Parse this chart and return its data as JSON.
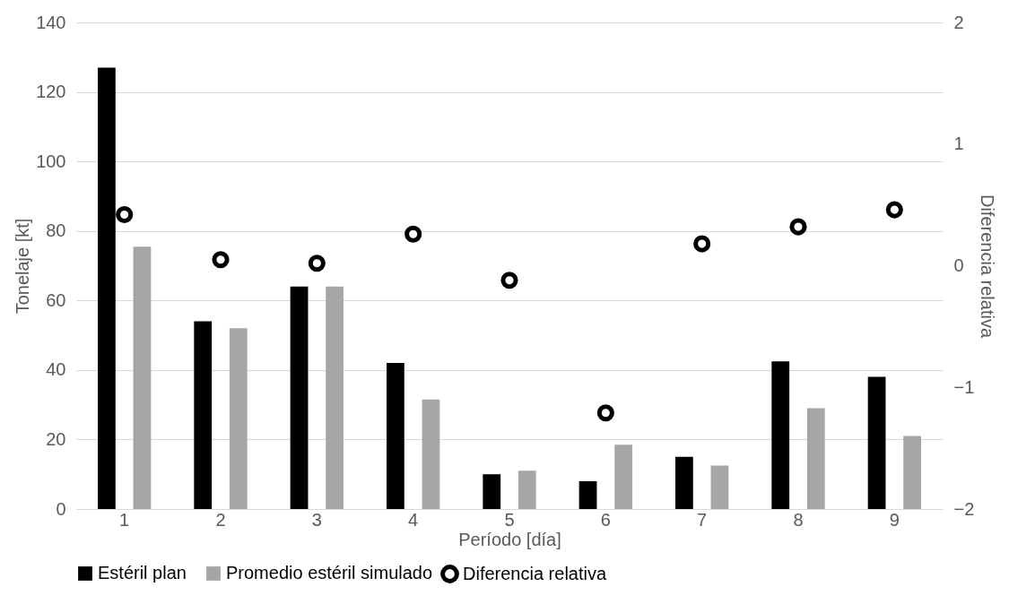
{
  "chart_data": {
    "type": "bar",
    "xlabel": "Período [día]",
    "ylabel": "Tonelaje [kt]",
    "y2label": "Diferencia relativa",
    "categories": [
      "1",
      "2",
      "3",
      "4",
      "5",
      "6",
      "7",
      "8",
      "9"
    ],
    "series": [
      {
        "name": "Estéril plan",
        "color": "#000000",
        "values": [
          127,
          54,
          64,
          42,
          10,
          8,
          15,
          42.5,
          38
        ]
      },
      {
        "name": "Promedio estéril simulado",
        "color": "#a6a6a6",
        "values": [
          75.5,
          52,
          64,
          31.5,
          11,
          18.5,
          12.5,
          29,
          21
        ]
      },
      {
        "name": "Diferencia relativa",
        "type": "scatter",
        "axis": "y2",
        "color": "#000000",
        "marker": "circle",
        "values": [
          0.42,
          0.05,
          0.02,
          0.26,
          -0.12,
          -1.21,
          0.18,
          0.32,
          0.46
        ]
      }
    ],
    "ylim": [
      0,
      140
    ],
    "yticks": [
      0,
      20,
      40,
      60,
      80,
      100,
      120,
      140
    ],
    "y2lim": [
      -2,
      2
    ],
    "y2ticks": [
      -2,
      -1,
      0,
      1,
      2
    ],
    "grid": "y",
    "legend": "bottom"
  }
}
